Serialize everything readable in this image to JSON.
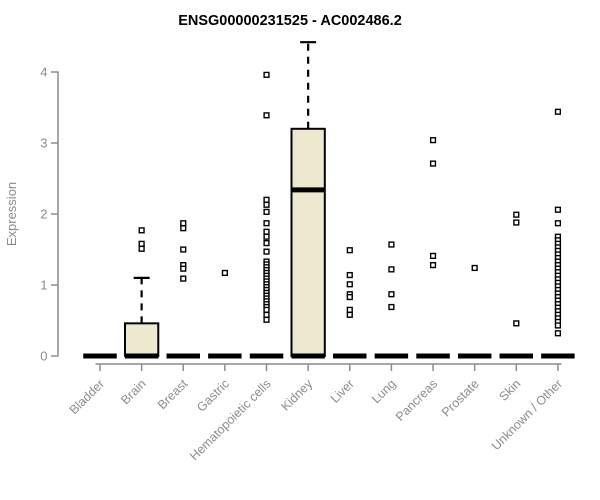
{
  "page": {
    "background_color": "#ffffff"
  },
  "chart_data": {
    "type": "boxplot",
    "title": "ENSG00000231525 - AC002486.2",
    "xlabel": "",
    "ylabel": "Expression",
    "ylim": [
      0,
      4.45
    ],
    "yticks": [
      0,
      1,
      2,
      3,
      4
    ],
    "grid": false,
    "legend": false,
    "xticklabel_rotation": 45,
    "colors": {
      "box_fill": "#ede8d0",
      "box_border": "#000000",
      "median": "#000000",
      "outlier": "#000000",
      "axis": "#8c8c8c",
      "tick_text": "#8c8c8c",
      "title_text": "#000000"
    },
    "categories": [
      "Bladder",
      "Brain",
      "Breast",
      "Gastric",
      "Hematopoietic cells",
      "Kidney",
      "Liver",
      "Lung",
      "Pancreas",
      "Prostate",
      "Skin",
      "Unknown / Other"
    ],
    "boxes": [
      {
        "category": "Bladder",
        "min": 0,
        "q1": 0,
        "median": 0,
        "q3": 0,
        "whisker_high": 0,
        "outliers": []
      },
      {
        "category": "Brain",
        "min": 0,
        "q1": 0,
        "median": 0,
        "q3": 0.46,
        "whisker_high": 1.1,
        "outliers": [
          1.77,
          1.58,
          1.51
        ]
      },
      {
        "category": "Breast",
        "min": 0,
        "q1": 0,
        "median": 0,
        "q3": 0,
        "whisker_high": 0,
        "outliers": [
          1.87,
          1.8,
          1.5,
          1.28,
          1.23,
          1.09
        ]
      },
      {
        "category": "Gastric",
        "min": 0,
        "q1": 0,
        "median": 0,
        "q3": 0,
        "whisker_high": 0,
        "outliers": [
          1.17
        ]
      },
      {
        "category": "Hematopoietic cells",
        "min": 0,
        "q1": 0,
        "median": 0,
        "q3": 0,
        "whisker_high": 0,
        "outliers": [
          3.96,
          3.39,
          2.2,
          2.13,
          2.03,
          1.87,
          1.75,
          1.68,
          1.59,
          1.47,
          1.33,
          1.29,
          1.25,
          1.21,
          1.17,
          1.13,
          1.09,
          1.05,
          1.01,
          0.97,
          0.93,
          0.89,
          0.85,
          0.81,
          0.77,
          0.73,
          0.69,
          0.65,
          0.58,
          0.51
        ]
      },
      {
        "category": "Kidney",
        "min": 0,
        "q1": 0,
        "median": 2.34,
        "q3": 3.2,
        "whisker_high": 4.42,
        "outliers": []
      },
      {
        "category": "Liver",
        "min": 0,
        "q1": 0,
        "median": 0,
        "q3": 0,
        "whisker_high": 0,
        "outliers": [
          1.49,
          1.14,
          1.01,
          0.87,
          0.83,
          0.65,
          0.58
        ]
      },
      {
        "category": "Lung",
        "min": 0,
        "q1": 0,
        "median": 0,
        "q3": 0,
        "whisker_high": 0,
        "outliers": [
          1.57,
          1.22,
          0.87,
          0.69
        ]
      },
      {
        "category": "Pancreas",
        "min": 0,
        "q1": 0,
        "median": 0,
        "q3": 0,
        "whisker_high": 0,
        "outliers": [
          3.04,
          2.71,
          1.41,
          1.28
        ]
      },
      {
        "category": "Prostate",
        "min": 0,
        "q1": 0,
        "median": 0,
        "q3": 0,
        "whisker_high": 0,
        "outliers": [
          1.24
        ]
      },
      {
        "category": "Skin",
        "min": 0,
        "q1": 0,
        "median": 0,
        "q3": 0,
        "whisker_high": 0,
        "outliers": [
          1.99,
          1.88,
          0.46
        ]
      },
      {
        "category": "Unknown / Other",
        "min": 0,
        "q1": 0,
        "median": 0,
        "q3": 0,
        "whisker_high": 0,
        "outliers": [
          3.44,
          2.06,
          1.87,
          1.68,
          1.63,
          1.58,
          1.53,
          1.48,
          1.43,
          1.38,
          1.33,
          1.28,
          1.23,
          1.18,
          1.13,
          1.08,
          1.03,
          0.98,
          0.93,
          0.88,
          0.83,
          0.78,
          0.73,
          0.68,
          0.63,
          0.58,
          0.53,
          0.48,
          0.43,
          0.32
        ]
      }
    ]
  }
}
